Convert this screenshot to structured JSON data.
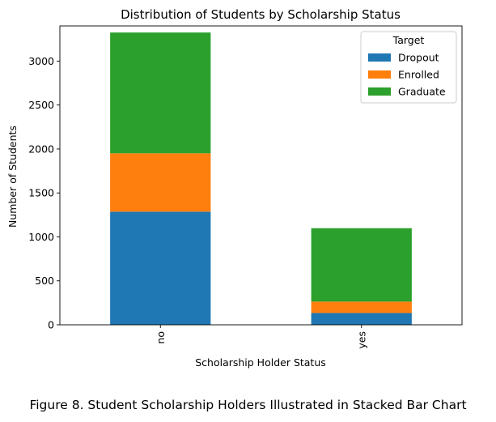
{
  "chart_data": {
    "type": "bar",
    "stacked": true,
    "title": "Distribution of Students by Scholarship Status",
    "xlabel": "Scholarship Holder Status",
    "ylabel": "Number of Students",
    "categories": [
      "no",
      "yes"
    ],
    "series": [
      {
        "name": "Dropout",
        "color": "#1f77b4",
        "values": [
          1287,
          134
        ]
      },
      {
        "name": "Enrolled",
        "color": "#ff7f0e",
        "values": [
          664,
          130
        ]
      },
      {
        "name": "Graduate",
        "color": "#2ca02c",
        "values": [
          1374,
          835
        ]
      }
    ],
    "ylim": [
      0,
      3400
    ],
    "yticks": [
      0,
      500,
      1000,
      1500,
      2000,
      2500,
      3000
    ],
    "legend": {
      "title": "Target",
      "placement": "top-right"
    },
    "grid": false
  },
  "caption": "Figure 8. Student Scholarship Holders Illustrated in Stacked Bar Chart"
}
